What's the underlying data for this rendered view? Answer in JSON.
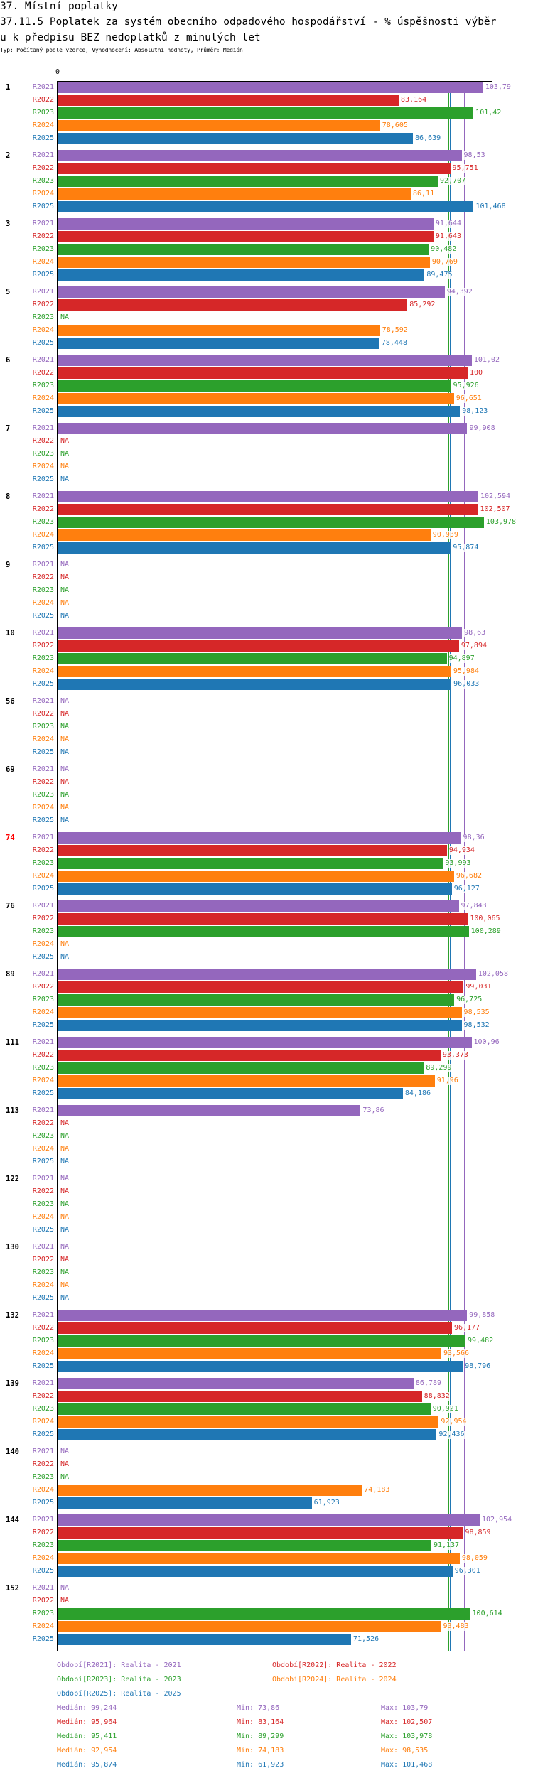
{
  "header": {
    "title_line1": "37. Místní poplatky",
    "title_line2": "37.11.5 Poplatek za systém obecního odpadového hospodářství  - % úspěšnosti výběr",
    "title_line3": "u k předpisu BEZ nedoplatků z minulých let",
    "subtitle": "Typ: Počítaný podle vzorce, Vyhodnocení: Absolutní hodnoty, Průměr: Medián"
  },
  "chart_data": {
    "type": "bar",
    "orientation": "horizontal",
    "axis_zero_label": "0",
    "xlim": [
      0,
      105
    ],
    "na_label": "NA",
    "series": [
      {
        "key": "R2021",
        "color": "#9467bd",
        "legend": "Období[R2021]: Realita - 2021",
        "median": "99,244",
        "min": "73,86",
        "max": "103,79"
      },
      {
        "key": "R2022",
        "color": "#d62728",
        "legend": "Období[R2022]: Realita - 2022",
        "median": "95,964",
        "min": "83,164",
        "max": "102,507"
      },
      {
        "key": "R2023",
        "color": "#2ca02c",
        "legend": "Období[R2023]: Realita - 2023",
        "median": "95,411",
        "min": "89,299",
        "max": "103,978"
      },
      {
        "key": "R2024",
        "color": "#ff7f0e",
        "legend": "Období[R2024]: Realita - 2024",
        "median": "92,954",
        "min": "74,183",
        "max": "98,535"
      },
      {
        "key": "R2025",
        "color": "#1f77b4",
        "legend": "Období[R2025]: Realita - 2025",
        "median": "95,874",
        "min": "61,923",
        "max": "101,468"
      }
    ],
    "stat_labels": {
      "median": "Medián: ",
      "min": "Min: ",
      "max": "Max: "
    },
    "groups": [
      {
        "label": "1",
        "values": [
          "103,79",
          "83,164",
          "101,42",
          "78,605",
          "86,639"
        ]
      },
      {
        "label": "2",
        "values": [
          "98,53",
          "95,751",
          "92,707",
          "86,11",
          "101,468"
        ]
      },
      {
        "label": "3",
        "values": [
          "91,644",
          "91,643",
          "90,482",
          "90,769",
          "89,475"
        ]
      },
      {
        "label": "5",
        "values": [
          "94,392",
          "85,292",
          null,
          "78,592",
          "78,448"
        ]
      },
      {
        "label": "6",
        "values": [
          "101,02",
          "100",
          "95,926",
          "96,651",
          "98,123"
        ]
      },
      {
        "label": "7",
        "values": [
          "99,908",
          null,
          null,
          null,
          null
        ]
      },
      {
        "label": "8",
        "values": [
          "102,594",
          "102,507",
          "103,978",
          "90,939",
          "95,874"
        ]
      },
      {
        "label": "9",
        "values": [
          null,
          null,
          null,
          null,
          null
        ]
      },
      {
        "label": "10",
        "values": [
          "98,63",
          "97,894",
          "94,897",
          "95,984",
          "96,033"
        ]
      },
      {
        "label": "56",
        "values": [
          null,
          null,
          null,
          null,
          null
        ]
      },
      {
        "label": "69",
        "values": [
          null,
          null,
          null,
          null,
          null
        ]
      },
      {
        "label": "74",
        "highlight": "#ff0000",
        "values": [
          "98,36",
          "94,934",
          "93,993",
          "96,682",
          "96,127"
        ]
      },
      {
        "label": "76",
        "values": [
          "97,843",
          "100,065",
          "100,289",
          null,
          null
        ]
      },
      {
        "label": "89",
        "values": [
          "102,058",
          "99,031",
          "96,725",
          "98,535",
          "98,532"
        ]
      },
      {
        "label": "111",
        "values": [
          "100,96",
          "93,373",
          "89,299",
          "91,96",
          "84,186"
        ]
      },
      {
        "label": "113",
        "values": [
          "73,86",
          null,
          null,
          null,
          null
        ]
      },
      {
        "label": "122",
        "values": [
          null,
          null,
          null,
          null,
          null
        ]
      },
      {
        "label": "130",
        "values": [
          null,
          null,
          null,
          null,
          null
        ]
      },
      {
        "label": "132",
        "values": [
          "99,858",
          "96,177",
          "99,482",
          "93,566",
          "98,796"
        ]
      },
      {
        "label": "139",
        "values": [
          "86,789",
          "88,832",
          "90,921",
          "92,954",
          "92,436"
        ]
      },
      {
        "label": "140",
        "values": [
          null,
          null,
          null,
          "74,183",
          "61,923"
        ]
      },
      {
        "label": "144",
        "values": [
          "102,954",
          "98,859",
          "91,137",
          "98,059",
          "96,301"
        ]
      },
      {
        "label": "152",
        "values": [
          null,
          null,
          "100,614",
          "93,483",
          "71,526"
        ]
      }
    ]
  }
}
